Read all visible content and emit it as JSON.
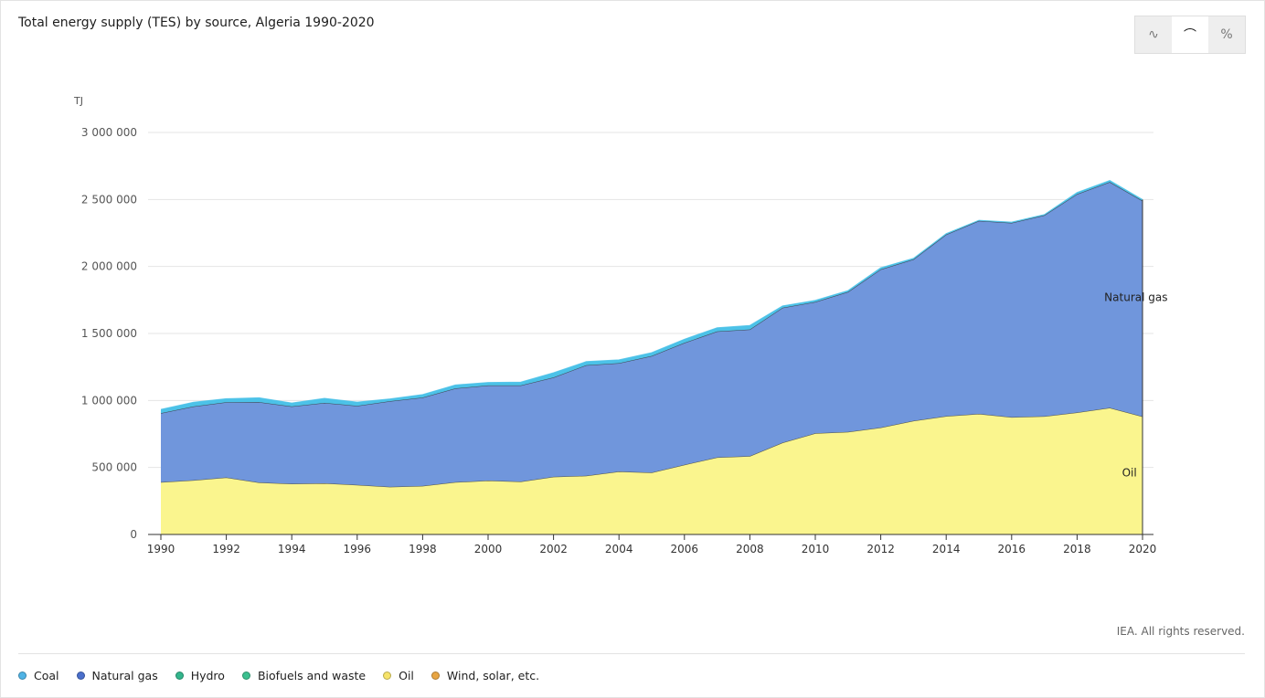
{
  "header": {
    "title": "Total energy supply (TES) by source, Algeria 1990-2020"
  },
  "view_toggle": [
    {
      "name": "line-chart-icon",
      "label": "∿",
      "active": false
    },
    {
      "name": "area-chart-icon",
      "label": "⌒",
      "active": true
    },
    {
      "name": "percent-icon",
      "label": "%",
      "active": false
    }
  ],
  "footer": {
    "credit": "IEA. All rights reserved."
  },
  "legend": [
    {
      "label": "Coal",
      "color": "#4fb3e5"
    },
    {
      "label": "Natural gas",
      "color": "#4a6fcc"
    },
    {
      "label": "Hydro",
      "color": "#33b58c"
    },
    {
      "label": "Biofuels and waste",
      "color": "#3cc08f"
    },
    {
      "label": "Oil",
      "color": "#f6e36a"
    },
    {
      "label": "Wind, solar, etc.",
      "color": "#e8a542"
    }
  ],
  "chart_data": {
    "type": "area",
    "stacked": true,
    "title": "Total energy supply (TES) by source, Algeria 1990-2020",
    "ylabel": "TJ",
    "xlabel": "",
    "ylim": [
      0,
      3000000
    ],
    "yticks": [
      0,
      500000,
      1000000,
      1500000,
      2000000,
      2500000,
      3000000
    ],
    "ytick_labels": [
      "0",
      "500 000",
      "1 000 000",
      "1 500 000",
      "2 000 000",
      "2 500 000",
      "3 000 000"
    ],
    "xticks": [
      1990,
      1992,
      1994,
      1996,
      1998,
      2000,
      2002,
      2004,
      2006,
      2008,
      2010,
      2012,
      2014,
      2016,
      2018,
      2020
    ],
    "grid": true,
    "x": [
      1990,
      1991,
      1992,
      1993,
      1994,
      1995,
      1996,
      1997,
      1998,
      1999,
      2000,
      2001,
      2002,
      2003,
      2004,
      2005,
      2006,
      2007,
      2008,
      2009,
      2010,
      2011,
      2012,
      2013,
      2014,
      2015,
      2016,
      2017,
      2018,
      2019,
      2020
    ],
    "series": [
      {
        "name": "Oil",
        "color": "#faf58e",
        "line": "#333333",
        "values": [
          390000,
          405000,
          425000,
          388000,
          378000,
          382000,
          370000,
          355000,
          362000,
          390000,
          402000,
          395000,
          430000,
          438000,
          470000,
          462000,
          520000,
          575000,
          585000,
          685000,
          755000,
          765000,
          798000,
          848000,
          883000,
          900000,
          875000,
          882000,
          910000,
          945000,
          880000
        ]
      },
      {
        "name": "Natural gas",
        "color": "#7096dc",
        "line": "#333333",
        "values": [
          515000,
          550000,
          562000,
          600000,
          577000,
          600000,
          590000,
          640000,
          660000,
          700000,
          710000,
          717000,
          742000,
          825000,
          808000,
          870000,
          910000,
          940000,
          945000,
          1007000,
          980000,
          1045000,
          1180000,
          1205000,
          1355000,
          1440000,
          1450000,
          1500000,
          1630000,
          1685000,
          1610000
        ]
      },
      {
        "name": "Hydro",
        "color": "#4cc2e8",
        "line": "#4cc2e8",
        "values": [
          28000,
          32000,
          26000,
          32000,
          26000,
          34000,
          28000,
          17000,
          22000,
          26000,
          22000,
          25000,
          35000,
          27000,
          25000,
          25000,
          27000,
          28000,
          30000,
          14000,
          12000,
          10000,
          12000,
          8000,
          7000,
          5000,
          6000,
          5000,
          12000,
          12000,
          9000
        ]
      }
    ],
    "annotations": [
      {
        "text": "Natural gas",
        "x": 2019.8,
        "y": 1770000
      },
      {
        "text": "Oil",
        "x": 2019.6,
        "y": 460000
      }
    ]
  }
}
